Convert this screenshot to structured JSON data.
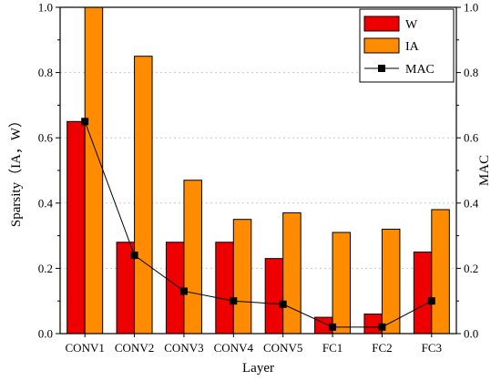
{
  "chart_data": {
    "type": "bar",
    "xlabel": "Layer",
    "ylabel_left": "Sparsity（IA，W）",
    "ylabel_right": "MAC",
    "ylim_left": [
      0,
      1.0
    ],
    "ylim_right": [
      0,
      1.0
    ],
    "yticks": [
      "0.0",
      "0.2",
      "0.4",
      "0.6",
      "0.8",
      "1.0"
    ],
    "grid": "horizontal dashed",
    "legend_position": "top-right",
    "categories": [
      "CONV1",
      "CONV2",
      "CONV3",
      "CONV4",
      "CONV5",
      "FC1",
      "FC2",
      "FC3"
    ],
    "series": [
      {
        "name": "W",
        "type": "bar",
        "axis": "left",
        "color": "#ee0000",
        "values": [
          0.65,
          0.28,
          0.28,
          0.28,
          0.23,
          0.05,
          0.06,
          0.25
        ]
      },
      {
        "name": "IA",
        "type": "bar",
        "axis": "left",
        "color": "#ff8c00",
        "values": [
          1.0,
          0.85,
          0.47,
          0.35,
          0.37,
          0.31,
          0.32,
          0.38
        ]
      },
      {
        "name": "MAC",
        "type": "line",
        "axis": "right",
        "color": "#000000",
        "values": [
          0.65,
          0.24,
          0.13,
          0.1,
          0.09,
          0.02,
          0.02,
          0.1
        ]
      }
    ]
  }
}
